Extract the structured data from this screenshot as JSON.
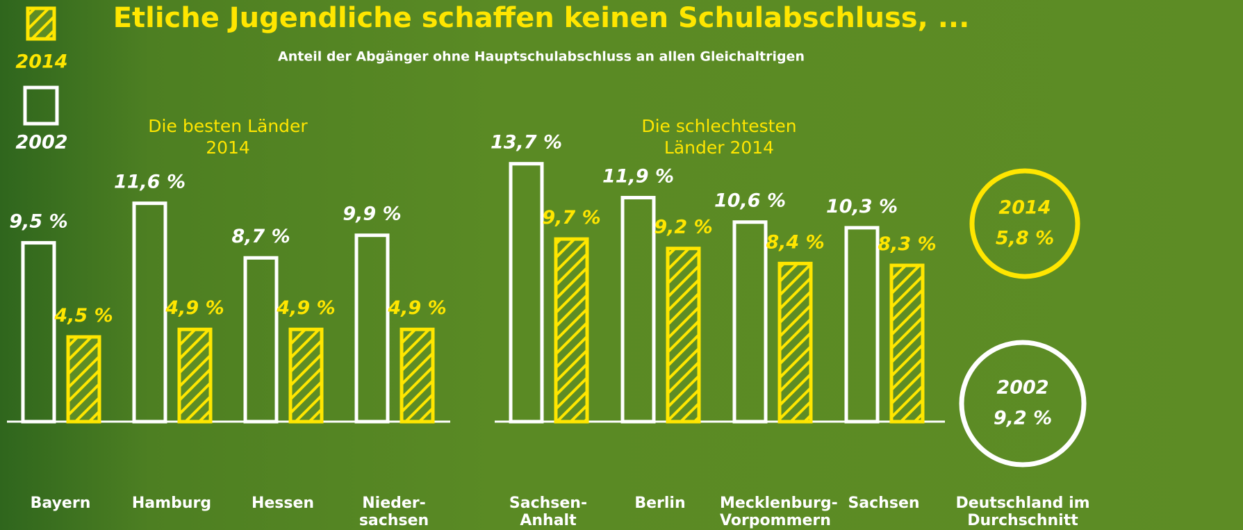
{
  "title": "Etliche Jugendliche schaffen keinen Schulabschluss, ...",
  "subtitle": "Anteil der Abgänger ohne Hauptschulabschluss an allen Gleichaltrigen",
  "chart_data": [
    {
      "type": "bar",
      "title": "Die besten Länder 2014",
      "categories": [
        "Bayern",
        "Hamburg",
        "Hessen",
        "Nieder-sachsen"
      ],
      "series": [
        {
          "name": "2002",
          "color": "#ffffff",
          "values": [
            9.5,
            11.6,
            8.7,
            9.9
          ],
          "value_labels": [
            "9,5 %",
            "11,6 %",
            "8,7 %",
            "9,9 %"
          ]
        },
        {
          "name": "2014",
          "color": "#ffe600",
          "values": [
            4.5,
            4.9,
            4.9,
            4.9
          ],
          "value_labels": [
            "4,5 %",
            "4,9 %",
            "4,9 %",
            "4,9 %"
          ]
        }
      ]
    },
    {
      "type": "bar",
      "title": "Die schlechtesten Länder 2014",
      "categories": [
        "Sachsen-Anhalt",
        "Berlin",
        "Mecklenburg-Vorpommern",
        "Sachsen"
      ],
      "series": [
        {
          "name": "2002",
          "color": "#ffffff",
          "values": [
            13.7,
            11.9,
            10.6,
            10.3
          ],
          "value_labels": [
            "13,7 %",
            "11,9 %",
            "10,6 %",
            "10,3 %"
          ]
        },
        {
          "name": "2014",
          "color": "#ffe600",
          "values": [
            9.7,
            9.2,
            8.4,
            8.3
          ],
          "value_labels": [
            "9,7 %",
            "9,2 %",
            "8,4 %",
            "8,3 %"
          ]
        }
      ]
    }
  ],
  "average": {
    "label": "Deutschland im Durchschnitt",
    "items": [
      {
        "name": "2014",
        "color": "#ffe600",
        "value": 5.8,
        "value_label": "5,8 %"
      },
      {
        "name": "2002",
        "color": "#ffffff",
        "value": 9.2,
        "value_label": "9,2 %"
      }
    ]
  }
}
